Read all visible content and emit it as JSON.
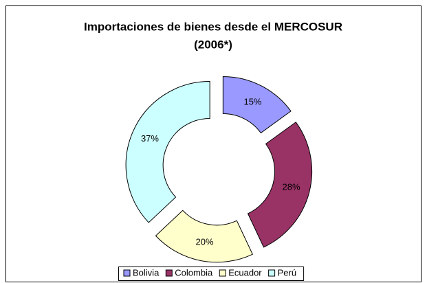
{
  "chart_data": {
    "type": "donut",
    "title": [
      "Importaciones de bienes desde el MERCOSUR",
      "(2006*)"
    ],
    "categories": [
      "Bolivia",
      "Colombia",
      "Ecuador",
      "Perú"
    ],
    "values": [
      15,
      28,
      20,
      37
    ],
    "value_labels": [
      "15%",
      "28%",
      "20%",
      "37%"
    ],
    "colors": [
      "#9999ff",
      "#993366",
      "#ffffcc",
      "#ccffff"
    ],
    "legend": "bottom"
  }
}
